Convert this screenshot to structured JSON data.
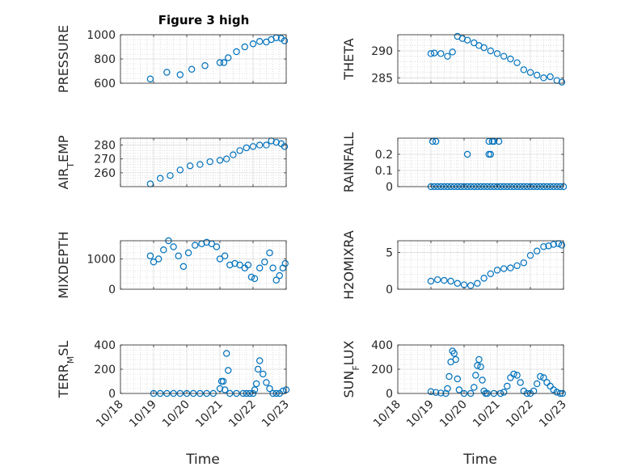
{
  "figure": {
    "title": "Figure 3 high",
    "x_label": "Time",
    "marker_color": "#0072BD"
  },
  "chart_data": [
    {
      "type": "scatter",
      "title": "Figure 3 high",
      "ylabel": "PRESSURE",
      "xlim": [
        18,
        23
      ],
      "ylim": [
        600,
        1000
      ],
      "yticks": [
        600,
        800,
        1000
      ],
      "xticks": [
        18,
        19,
        20,
        21,
        22,
        23
      ],
      "xticklabels": [
        "10/18",
        "10/19",
        "10/20",
        "10/21",
        "10/22",
        "10/23"
      ],
      "show_xticklabels": false,
      "grid": true,
      "minor_grid": true,
      "series": [
        {
          "marker": "circle",
          "x": [
            18.9,
            19.4,
            19.8,
            20.15,
            20.55,
            21.0,
            21.12,
            21.25,
            21.5,
            21.75,
            22.0,
            22.2,
            22.4,
            22.55,
            22.7,
            22.85,
            22.95
          ],
          "y": [
            635,
            690,
            670,
            715,
            745,
            770,
            770,
            810,
            860,
            900,
            925,
            945,
            940,
            960,
            975,
            970,
            950
          ]
        }
      ]
    },
    {
      "type": "scatter",
      "ylabel": "THETA",
      "xlim": [
        18,
        23
      ],
      "ylim": [
        284,
        293
      ],
      "yticks": [
        285,
        290
      ],
      "xticks": [
        18,
        19,
        20,
        21,
        22,
        23
      ],
      "xticklabels": [
        "10/18",
        "10/19",
        "10/20",
        "10/21",
        "10/22",
        "10/23"
      ],
      "show_xticklabels": false,
      "grid": true,
      "minor_grid": true,
      "series": [
        {
          "marker": "circle",
          "x": [
            19.0,
            19.1,
            19.3,
            19.5,
            19.65,
            19.8,
            19.95,
            20.1,
            20.3,
            20.45,
            20.6,
            20.8,
            21.0,
            21.2,
            21.4,
            21.6,
            21.8,
            22.0,
            22.2,
            22.4,
            22.6,
            22.8,
            22.95
          ],
          "y": [
            289.5,
            289.6,
            289.5,
            289.0,
            289.8,
            292.7,
            292.3,
            292.0,
            291.5,
            291.0,
            290.6,
            290.0,
            289.5,
            289.0,
            288.5,
            287.8,
            286.5,
            286.0,
            285.5,
            285.0,
            285.2,
            284.5,
            284.2
          ]
        }
      ]
    },
    {
      "type": "scatter",
      "ylabel": "AIR_TEMP",
      "ylabel_base": "AIR",
      "ylabel_sub": "T",
      "ylabel_rest": "EMP",
      "xlim": [
        18,
        23
      ],
      "ylim": [
        250,
        285
      ],
      "yticks": [
        260,
        270,
        280
      ],
      "xticks": [
        18,
        19,
        20,
        21,
        22,
        23
      ],
      "xticklabels": [
        "10/18",
        "10/19",
        "10/20",
        "10/21",
        "10/22",
        "10/23"
      ],
      "show_xticklabels": false,
      "grid": true,
      "minor_grid": true,
      "series": [
        {
          "marker": "circle",
          "x": [
            18.9,
            19.2,
            19.5,
            19.8,
            20.1,
            20.4,
            20.7,
            21.0,
            21.2,
            21.4,
            21.6,
            21.8,
            22.0,
            22.2,
            22.4,
            22.55,
            22.7,
            22.85,
            22.95
          ],
          "y": [
            252,
            256,
            258,
            262,
            265,
            266,
            268,
            269,
            270,
            273,
            276,
            278,
            279,
            280,
            280,
            283,
            282,
            281,
            279
          ]
        }
      ]
    },
    {
      "type": "scatter",
      "ylabel": "RAINFALL",
      "xlim": [
        18,
        23
      ],
      "ylim": [
        0,
        0.3
      ],
      "yticks": [
        0,
        0.1,
        0.2
      ],
      "yticklabels": [
        "0",
        "0.1",
        "0.2"
      ],
      "xticks": [
        18,
        19,
        20,
        21,
        22,
        23
      ],
      "xticklabels": [
        "10/18",
        "10/19",
        "10/20",
        "10/21",
        "10/22",
        "10/23"
      ],
      "show_xticklabels": false,
      "grid": true,
      "minor_grid": true,
      "series": [
        {
          "marker": "circle",
          "x": [
            19.0,
            19.1,
            19.2,
            19.3,
            19.4,
            19.5,
            19.6,
            19.7,
            19.8,
            19.9,
            20.0,
            20.1,
            20.2,
            20.3,
            20.4,
            20.5,
            20.6,
            20.7,
            20.8,
            20.9,
            21.0,
            21.1,
            21.2,
            21.3,
            21.4,
            21.5,
            21.6,
            21.7,
            21.8,
            21.9,
            22.0,
            22.1,
            22.2,
            22.3,
            22.4,
            22.5,
            22.6,
            22.7,
            22.8,
            22.9,
            23.0,
            19.05,
            19.15,
            20.1,
            20.75,
            20.8,
            20.9,
            20.75,
            20.85,
            21.05
          ],
          "y": [
            0,
            0,
            0,
            0,
            0,
            0,
            0,
            0,
            0,
            0,
            0,
            0,
            0,
            0,
            0,
            0,
            0,
            0,
            0,
            0,
            0,
            0,
            0,
            0,
            0,
            0,
            0,
            0,
            0,
            0,
            0,
            0,
            0,
            0,
            0,
            0,
            0,
            0,
            0,
            0,
            0,
            0.28,
            0.28,
            0.2,
            0.2,
            0.2,
            0.28,
            0.28,
            0.28,
            0.28
          ]
        }
      ]
    },
    {
      "type": "scatter",
      "ylabel": "MIXDEPTH",
      "xlim": [
        18,
        23
      ],
      "ylim": [
        0,
        1600
      ],
      "yticks": [
        0,
        1000
      ],
      "xticks": [
        18,
        19,
        20,
        21,
        22,
        23
      ],
      "xticklabels": [
        "10/18",
        "10/19",
        "10/20",
        "10/21",
        "10/22",
        "10/23"
      ],
      "show_xticklabels": false,
      "grid": true,
      "minor_grid": true,
      "series": [
        {
          "marker": "circle",
          "x": [
            18.9,
            19.0,
            19.15,
            19.3,
            19.45,
            19.6,
            19.75,
            19.9,
            20.05,
            20.25,
            20.45,
            20.6,
            20.75,
            20.9,
            21.0,
            21.15,
            21.3,
            21.45,
            21.6,
            21.75,
            21.85,
            21.95,
            22.05,
            22.2,
            22.35,
            22.5,
            22.6,
            22.7,
            22.8,
            22.9,
            22.97
          ],
          "y": [
            1100,
            900,
            1000,
            1300,
            1600,
            1400,
            1100,
            750,
            1200,
            1450,
            1500,
            1550,
            1500,
            1400,
            1000,
            1100,
            800,
            850,
            800,
            700,
            800,
            400,
            350,
            700,
            900,
            1200,
            700,
            300,
            450,
            700,
            850
          ]
        }
      ]
    },
    {
      "type": "scatter",
      "ylabel": "H2OMIXRA",
      "xlim": [
        18,
        23
      ],
      "ylim": [
        0,
        6.6
      ],
      "yticks": [
        0,
        5
      ],
      "xticks": [
        18,
        19,
        20,
        21,
        22,
        23
      ],
      "xticklabels": [
        "10/18",
        "10/19",
        "10/20",
        "10/21",
        "10/22",
        "10/23"
      ],
      "show_xticklabels": false,
      "grid": true,
      "minor_grid": true,
      "series": [
        {
          "marker": "circle",
          "x": [
            19.0,
            19.2,
            19.4,
            19.6,
            19.8,
            20.0,
            20.2,
            20.4,
            20.6,
            20.8,
            21.0,
            21.2,
            21.4,
            21.6,
            21.8,
            22.0,
            22.2,
            22.4,
            22.55,
            22.7,
            22.85,
            22.95
          ],
          "y": [
            1.1,
            1.3,
            1.2,
            1.1,
            0.8,
            0.6,
            0.5,
            0.8,
            1.5,
            2.1,
            2.6,
            2.8,
            2.9,
            3.2,
            3.6,
            4.6,
            5.2,
            5.8,
            5.9,
            6.1,
            6.2,
            6.0
          ]
        }
      ]
    },
    {
      "type": "scatter",
      "ylabel": "TERR_MSL",
      "ylabel_base": "TERR",
      "ylabel_sub": "M",
      "ylabel_rest": "SL",
      "xlim": [
        18,
        23
      ],
      "ylim": [
        0,
        400
      ],
      "yticks": [
        0,
        200,
        400
      ],
      "xticks": [
        18,
        19,
        20,
        21,
        22,
        23
      ],
      "xticklabels": [
        "10/18",
        "10/19",
        "10/20",
        "10/21",
        "10/22",
        "10/23"
      ],
      "show_xticklabels": true,
      "grid": true,
      "minor_grid": true,
      "series": [
        {
          "marker": "circle",
          "x": [
            19.0,
            19.2,
            19.4,
            19.6,
            19.8,
            20.0,
            20.2,
            20.4,
            20.6,
            20.8,
            21.0,
            21.05,
            21.1,
            21.15,
            21.2,
            21.25,
            21.3,
            21.5,
            21.7,
            21.8,
            21.9,
            22.0,
            22.05,
            22.1,
            22.15,
            22.2,
            22.3,
            22.4,
            22.5,
            22.6,
            22.7,
            22.8,
            22.9,
            23.0
          ],
          "y": [
            0,
            0,
            0,
            0,
            0,
            0,
            0,
            0,
            0,
            0,
            40,
            100,
            100,
            30,
            330,
            190,
            0,
            0,
            0,
            0,
            0,
            0,
            30,
            80,
            200,
            270,
            160,
            90,
            40,
            0,
            0,
            0,
            20,
            30
          ]
        }
      ]
    },
    {
      "type": "scatter",
      "ylabel": "SUN_FLUX",
      "ylabel_base": "SUN",
      "ylabel_sub": "F",
      "ylabel_rest": "LUX",
      "xlim": [
        18,
        23
      ],
      "ylim": [
        0,
        400
      ],
      "yticks": [
        0,
        200,
        400
      ],
      "xticks": [
        18,
        19,
        20,
        21,
        22,
        23
      ],
      "xticklabels": [
        "10/18",
        "10/19",
        "10/20",
        "10/21",
        "10/22",
        "10/23"
      ],
      "show_xticklabels": true,
      "grid": true,
      "minor_grid": true,
      "series": [
        {
          "marker": "circle",
          "x": [
            19.0,
            19.15,
            19.3,
            19.45,
            19.5,
            19.55,
            19.6,
            19.65,
            19.7,
            19.75,
            19.8,
            19.85,
            20.0,
            20.2,
            20.3,
            20.35,
            20.4,
            20.45,
            20.5,
            20.55,
            20.6,
            20.65,
            20.7,
            20.9,
            21.1,
            21.2,
            21.3,
            21.4,
            21.5,
            21.6,
            21.7,
            21.8,
            21.9,
            22.0,
            22.1,
            22.2,
            22.3,
            22.4,
            22.5,
            22.6,
            22.7,
            22.8,
            22.9,
            22.97
          ],
          "y": [
            15,
            8,
            3,
            0,
            40,
            140,
            260,
            350,
            330,
            280,
            120,
            30,
            0,
            0,
            50,
            150,
            230,
            280,
            220,
            110,
            20,
            0,
            0,
            0,
            0,
            10,
            60,
            130,
            160,
            150,
            90,
            20,
            0,
            0,
            20,
            80,
            140,
            130,
            90,
            60,
            30,
            10,
            0,
            0
          ]
        }
      ]
    }
  ]
}
